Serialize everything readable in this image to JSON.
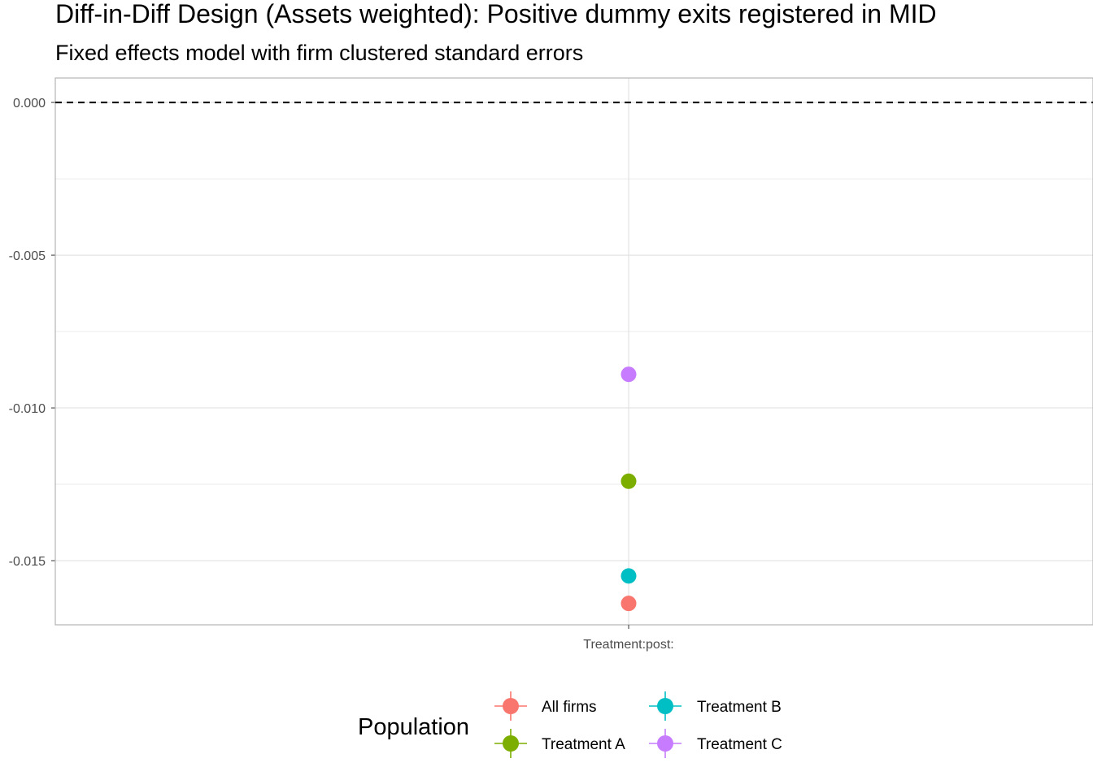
{
  "chart_data": {
    "type": "scatter",
    "title": "Diff-in-Diff Design (Assets weighted): Positive dummy exits registered in MID",
    "subtitle": "Fixed effects model with firm clustered standard errors",
    "xlabel": "",
    "ylabel": "",
    "categories": [
      "Treatment:post:"
    ],
    "ylim": [
      -0.0171,
      0.0008
    ],
    "yticks": [
      0.0,
      -0.005,
      -0.01,
      -0.015
    ],
    "ytick_labels": [
      "0.000",
      "-0.005",
      "-0.010",
      "-0.015"
    ],
    "reference_line": {
      "y": 0.0,
      "style": "dashed"
    },
    "grid": true,
    "legend": {
      "title": "Population",
      "position": "bottom"
    },
    "series": [
      {
        "name": "All firms",
        "color": "#F8766D",
        "values": [
          -0.0164
        ]
      },
      {
        "name": "Treatment A",
        "color": "#7CAE00",
        "values": [
          -0.0124
        ]
      },
      {
        "name": "Treatment B",
        "color": "#00BFC4",
        "values": [
          -0.0155
        ]
      },
      {
        "name": "Treatment C",
        "color": "#C77CFF",
        "values": [
          -0.0089
        ]
      }
    ]
  }
}
